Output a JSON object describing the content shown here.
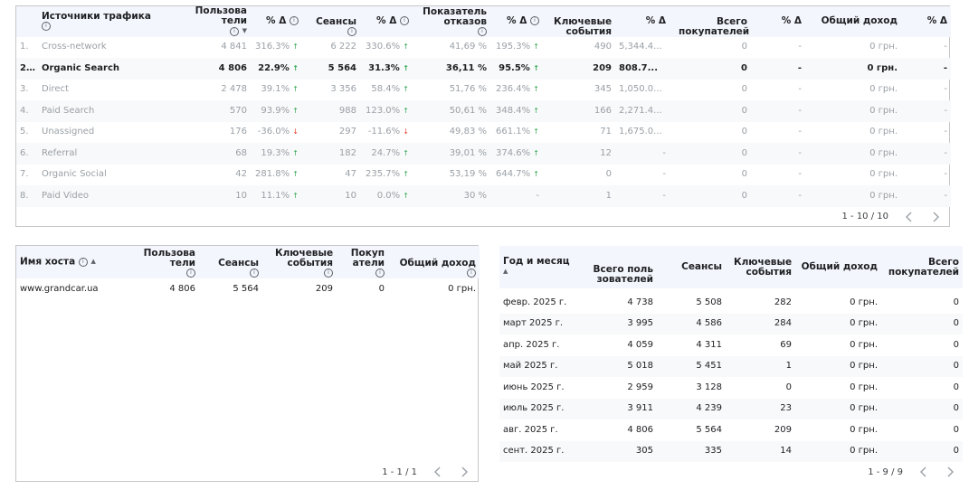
{
  "traffic": {
    "headers": {
      "source": "Источники трафика",
      "users": "Пользователи",
      "delta": "% Δ",
      "sessions": "Сеансы",
      "bounce": "Показатель отказов",
      "key_events": "Ключевые события",
      "buyers": "Всего покупателей",
      "revenue": "Общий доход"
    },
    "rows": [
      {
        "n": "1.",
        "source": "Cross-network",
        "users": "4 841",
        "users_d": "316.3%",
        "sessions": "6 222",
        "sessions_d": "330.6%",
        "bounce": "41,69 %",
        "bounce_d": "195.3%",
        "key": "490",
        "key_d": "5,344.4...",
        "buyers": "0",
        "buyers_d": "-",
        "revenue": "0 грн.",
        "revenue_d": "-"
      },
      {
        "n": "2...",
        "source": "Organic Search",
        "users": "4 806",
        "users_d": "22.9%",
        "sessions": "5 564",
        "sessions_d": "31.3%",
        "bounce": "36,11 %",
        "bounce_d": "95.5%",
        "key": "209",
        "key_d": "808.7...",
        "buyers": "0",
        "buyers_d": "-",
        "revenue": "0 грн.",
        "revenue_d": "-"
      },
      {
        "n": "3.",
        "source": "Direct",
        "users": "2 478",
        "users_d": "39.1%",
        "sessions": "3 356",
        "sessions_d": "58.4%",
        "bounce": "51,76 %",
        "bounce_d": "236.4%",
        "key": "345",
        "key_d": "1,050.0...",
        "buyers": "0",
        "buyers_d": "-",
        "revenue": "0 грн.",
        "revenue_d": "-"
      },
      {
        "n": "4.",
        "source": "Paid Search",
        "users": "570",
        "users_d": "93.9%",
        "sessions": "988",
        "sessions_d": "123.0%",
        "bounce": "50,61 %",
        "bounce_d": "348.4%",
        "key": "166",
        "key_d": "2,271.4...",
        "buyers": "0",
        "buyers_d": "-",
        "revenue": "0 грн.",
        "revenue_d": "-"
      },
      {
        "n": "5.",
        "source": "Unassigned",
        "users": "176",
        "users_d": "-36.0%",
        "sessions": "297",
        "sessions_d": "-11.6%",
        "bounce": "49,83 %",
        "bounce_d": "661.1%",
        "key": "71",
        "key_d": "1,675.0...",
        "buyers": "0",
        "buyers_d": "-",
        "revenue": "0 грн.",
        "revenue_d": "-"
      },
      {
        "n": "6.",
        "source": "Referral",
        "users": "68",
        "users_d": "19.3%",
        "sessions": "182",
        "sessions_d": "24.7%",
        "bounce": "39,01 %",
        "bounce_d": "374.6%",
        "key": "12",
        "key_d": "-",
        "buyers": "0",
        "buyers_d": "-",
        "revenue": "0 грн.",
        "revenue_d": "-"
      },
      {
        "n": "7.",
        "source": "Organic Social",
        "users": "42",
        "users_d": "281.8%",
        "sessions": "47",
        "sessions_d": "235.7%",
        "bounce": "53,19 %",
        "bounce_d": "644.7%",
        "key": "0",
        "key_d": "-",
        "buyers": "0",
        "buyers_d": "-",
        "revenue": "0 грн.",
        "revenue_d": "-"
      },
      {
        "n": "8.",
        "source": "Paid Video",
        "users": "10",
        "users_d": "11.1%",
        "sessions": "10",
        "sessions_d": "0.0%",
        "bounce": "30 %",
        "bounce_d": "-",
        "key": "1",
        "key_d": "-",
        "buyers": "0",
        "buyers_d": "-",
        "revenue": "0 грн.",
        "revenue_d": "-"
      }
    ],
    "pager": "1 - 10 / 10"
  },
  "hosts": {
    "headers": {
      "host": "Имя хоста",
      "users": "Пользователи",
      "sessions": "Сеансы",
      "key_events": "Ключевые события",
      "buyers": "Покупатели",
      "revenue": "Общий доход"
    },
    "rows": [
      {
        "host": "www.grandcar.ua",
        "users": "4 806",
        "sessions": "5 564",
        "key": "209",
        "buyers": "0",
        "revenue": "0 грн."
      }
    ],
    "pager": "1 - 1 / 1"
  },
  "months": {
    "headers": {
      "month": "Год и месяц",
      "users": "Всего пользователей",
      "sessions": "Сеансы",
      "key_events": "Ключевые события",
      "revenue": "Общий доход",
      "buyers": "Всего покупателей"
    },
    "rows": [
      {
        "month": "февр. 2025 г.",
        "users": "4 738",
        "sessions": "5 508",
        "key": "282",
        "revenue": "0 грн.",
        "buyers": "0"
      },
      {
        "month": "март 2025 г.",
        "users": "3 995",
        "sessions": "4 586",
        "key": "284",
        "revenue": "0 грн.",
        "buyers": "0"
      },
      {
        "month": "апр. 2025 г.",
        "users": "4 059",
        "sessions": "4 311",
        "key": "69",
        "revenue": "0 грн.",
        "buyers": "0"
      },
      {
        "month": "май 2025 г.",
        "users": "5 018",
        "sessions": "5 451",
        "key": "1",
        "revenue": "0 грн.",
        "buyers": "0"
      },
      {
        "month": "июнь 2025 г.",
        "users": "2 959",
        "sessions": "3 128",
        "key": "0",
        "revenue": "0 грн.",
        "buyers": "0"
      },
      {
        "month": "июль 2025 г.",
        "users": "3 911",
        "sessions": "4 239",
        "key": "23",
        "revenue": "0 грн.",
        "buyers": "0"
      },
      {
        "month": "авг. 2025 г.",
        "users": "4 806",
        "sessions": "5 564",
        "key": "209",
        "revenue": "0 грн.",
        "buyers": "0"
      },
      {
        "month": "сент. 2025 г.",
        "users": "305",
        "sessions": "335",
        "key": "14",
        "revenue": "0 грн.",
        "buyers": "0"
      }
    ],
    "pager": "1 - 9 / 9"
  },
  "colors": {
    "up": "#34a853",
    "down": "#ea4335",
    "header_bg": "#f3f6fc",
    "row_alt": "#f8f9fa"
  },
  "icons": {
    "info": "info-circle-icon",
    "sort_desc": "sort-desc-icon",
    "sort_asc": "sort-asc-icon",
    "prev": "chevron-left-icon",
    "next": "chevron-right-icon"
  }
}
